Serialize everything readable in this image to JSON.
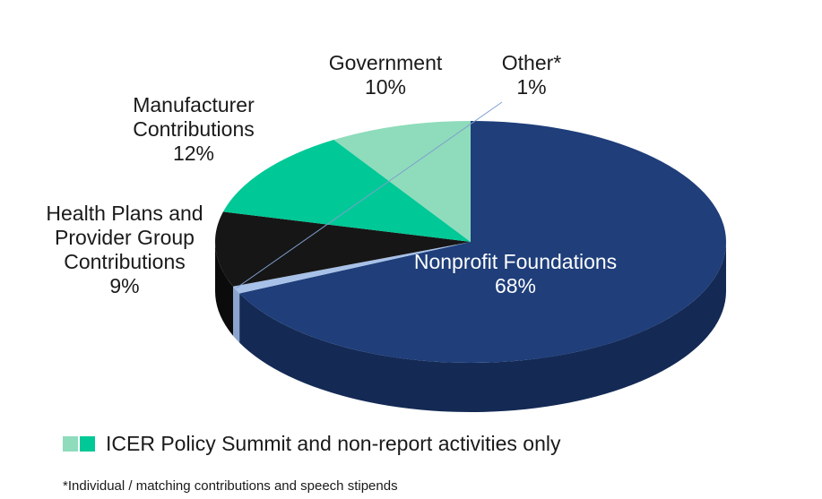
{
  "chart_data": {
    "type": "pie",
    "style": "3d",
    "slices": [
      {
        "label": [
          "Nonprofit Foundations"
        ],
        "value": 68,
        "pct_text": "68%",
        "color": "#1f3e7a",
        "side_color": "#142a55",
        "label_inside": true
      },
      {
        "label": [
          "Other*"
        ],
        "value": 1,
        "pct_text": "1%",
        "color": "#a7c1e8",
        "side_color": "#8aa5cc",
        "label_inside": false
      },
      {
        "label": [
          "Government"
        ],
        "value": 10,
        "pct_text": "10%",
        "color": "#161616",
        "side_color": "#0b0b0b",
        "label_inside": false
      },
      {
        "label": [
          "Manufacturer",
          "Contributions"
        ],
        "value": 12,
        "pct_text": "12%",
        "color": "#00c896",
        "side_color": "#009e76",
        "label_inside": false
      },
      {
        "label": [
          "Health Plans and",
          "Provider Group",
          "Contributions"
        ],
        "value": 9,
        "pct_text": "9%",
        "color": "#8edcbb",
        "side_color": "#6fc29f",
        "label_inside": false
      }
    ]
  },
  "legend": {
    "text": "ICER Policy Summit and non-report activities only",
    "swatch_colors": [
      "#8edcbb",
      "#00c896"
    ]
  },
  "footnote": "*Individual / matching contributions and speech stipends"
}
